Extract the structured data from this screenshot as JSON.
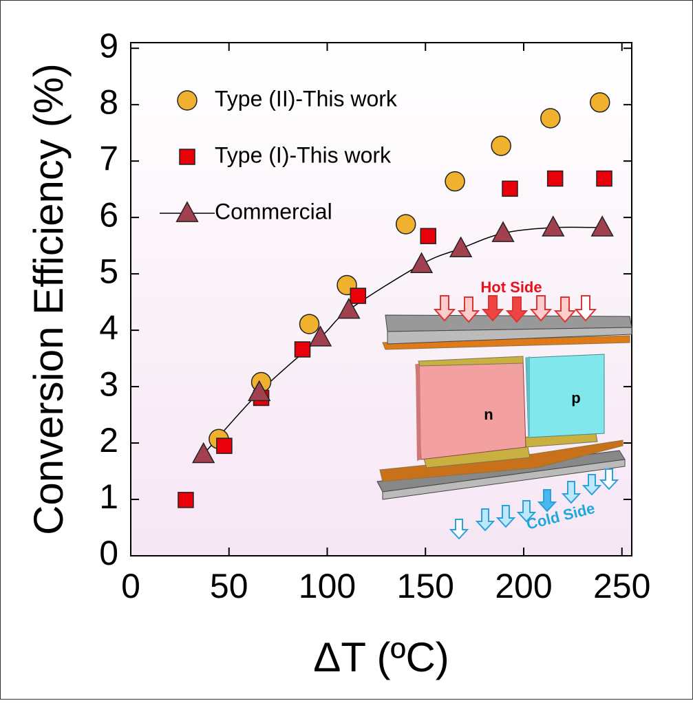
{
  "chart_data": {
    "type": "scatter",
    "x_label": "ΔT (ºC)",
    "y_label": "Conversion Efficiency (%)",
    "xlim": [
      0,
      255
    ],
    "ylim": [
      0,
      9.1
    ],
    "xticks": [
      0,
      50,
      100,
      150,
      200,
      250
    ],
    "yticks": [
      0,
      1,
      2,
      3,
      4,
      5,
      6,
      7,
      8,
      9
    ],
    "legend": "upper left",
    "series": [
      {
        "name": "Type (II)-This work",
        "color": "#f0b22e",
        "marker": "circle",
        "x": [
          44.8,
          66.4,
          90.9,
          110,
          140,
          165,
          188.5,
          213.6,
          238.8
        ],
        "values": [
          2.07,
          3.08,
          4.11,
          4.8,
          5.88,
          6.64,
          7.27,
          7.76,
          8.04
        ]
      },
      {
        "name": "Type (I)-This work",
        "color": "#e8000a",
        "marker": "square",
        "x": [
          28,
          47.6,
          66.4,
          87.4,
          115.7,
          151.4,
          193,
          216,
          241
        ],
        "values": [
          0.99,
          1.95,
          2.8,
          3.66,
          4.61,
          5.67,
          6.51,
          6.69,
          6.69
        ]
      },
      {
        "name": "Commercial",
        "color": "#a3404f",
        "marker": "triangle",
        "line": true,
        "x": [
          37,
          65.4,
          96.5,
          111,
          148,
          168,
          189.5,
          215,
          240
        ],
        "values": [
          1.8,
          2.9,
          3.87,
          4.36,
          5.17,
          5.45,
          5.72,
          5.82,
          5.82
        ]
      }
    ],
    "annotations": [
      "Hot Side",
      "Cold Side",
      "n",
      "p"
    ]
  }
}
